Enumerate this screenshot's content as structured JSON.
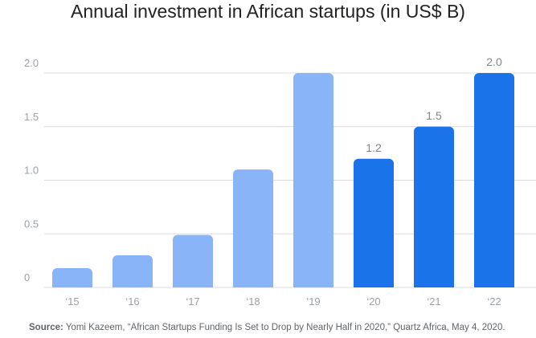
{
  "colors": {
    "historical_bar": "#8ab4f8",
    "projected_bar": "#1a73e8",
    "gridline": "#dadce0",
    "tick_text": "#9aa0a6",
    "value_label_text": "#80868b",
    "title_text": "#202124",
    "source_text": "#5f6368"
  },
  "chart_data": {
    "type": "bar",
    "title": "Annual investment in African startups (in US$ B)",
    "xlabel": "",
    "ylabel": "",
    "categories": [
      "‘15",
      "‘16",
      "‘17",
      "‘18",
      "‘19",
      "‘20",
      "‘21",
      "‘22"
    ],
    "values": [
      0.18,
      0.3,
      0.49,
      1.1,
      2.0,
      1.2,
      1.5,
      2.0
    ],
    "bar_kinds": [
      "historical",
      "historical",
      "historical",
      "historical",
      "historical",
      "projected",
      "projected",
      "projected"
    ],
    "data_labels": [
      "",
      "",
      "",
      "",
      "",
      "1.2",
      "1.5",
      "2.0"
    ],
    "ylim": [
      0,
      2.0
    ],
    "yticks": [
      0,
      0.5,
      1.0,
      1.5,
      2.0
    ],
    "ytick_labels": [
      "0",
      "0.5",
      "1.0",
      "1.5",
      "2.0"
    ],
    "grid": true,
    "legend": "none"
  },
  "source": {
    "label": "Source:",
    "text": " Yomi Kazeem, “African Startups Funding Is Set to Drop by Nearly Half in 2020,” Quartz Africa, May 4, 2020."
  }
}
